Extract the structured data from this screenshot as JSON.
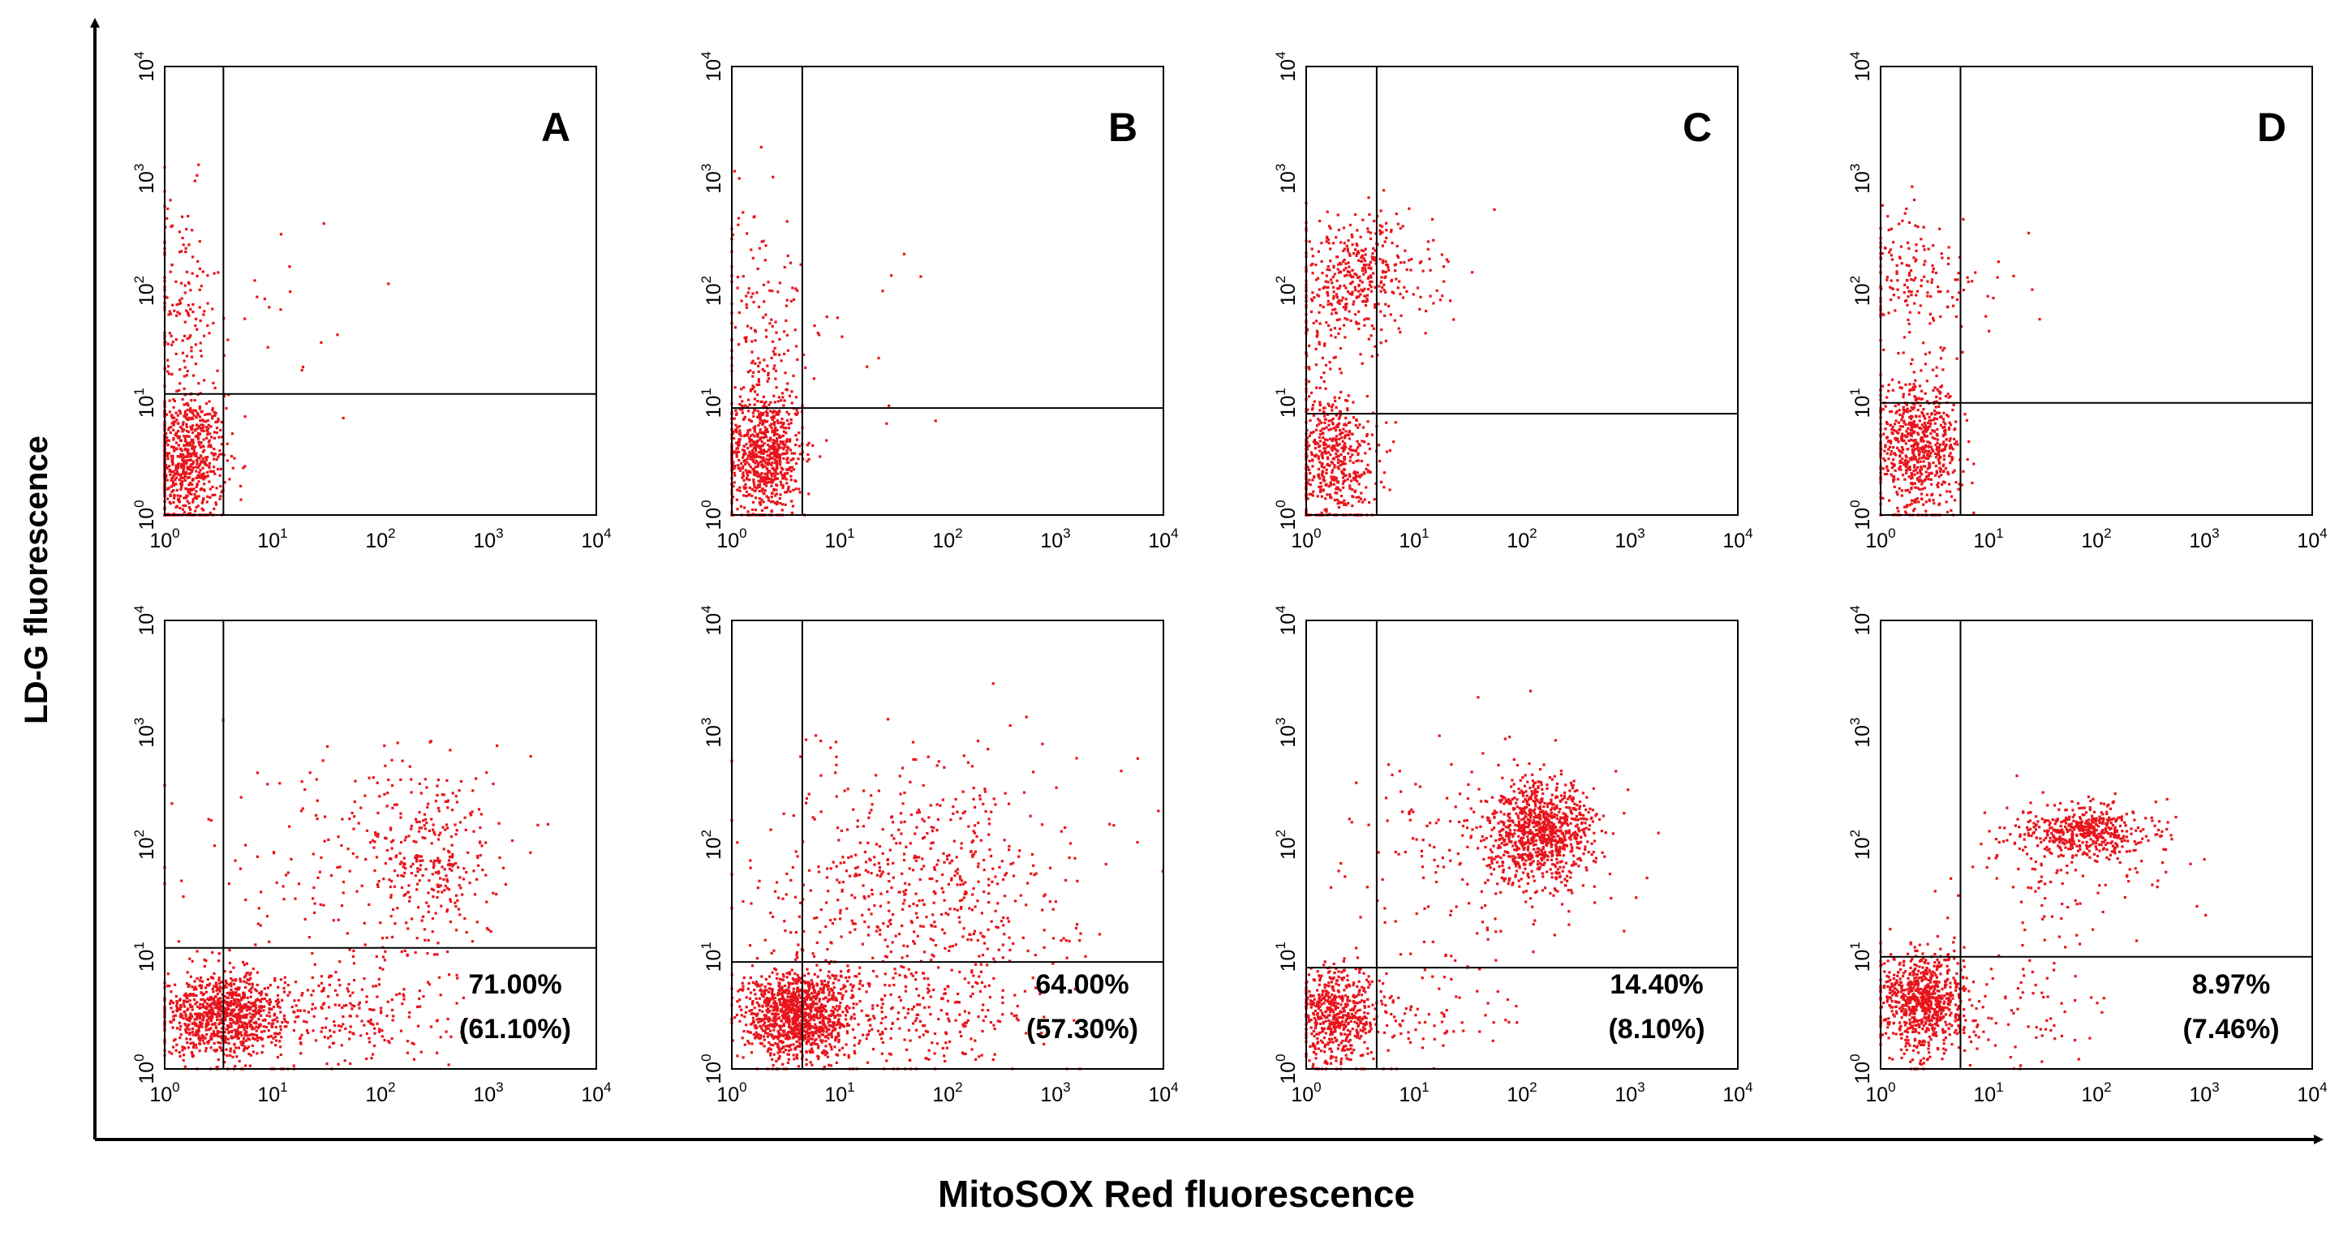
{
  "figure": {
    "xlabel": "MitoSOX Red fluorescence",
    "ylabel": "LD-G fluorescence",
    "colors": {
      "dots": "#e8141c",
      "lines": "#000000",
      "text": "#000000"
    }
  },
  "chart_data": {
    "type": "scatter",
    "description": "Flow cytometry dot plots, 2 rows x 4 columns, log-log axes",
    "x_scale": "log",
    "y_scale": "log",
    "xlim": [
      1,
      10000
    ],
    "ylim": [
      1,
      10000
    ],
    "tick_labels": {
      "x": [
        {
          "base": "10",
          "exp": "0"
        },
        {
          "base": "10",
          "exp": "1"
        },
        {
          "base": "10",
          "exp": "2"
        },
        {
          "base": "10",
          "exp": "3"
        },
        {
          "base": "10",
          "exp": "4"
        }
      ],
      "y": [
        {
          "base": "10",
          "exp": "0"
        },
        {
          "base": "10",
          "exp": "1"
        },
        {
          "base": "10",
          "exp": "2"
        },
        {
          "base": "10",
          "exp": "3"
        },
        {
          "base": "10",
          "exp": "4"
        }
      ]
    },
    "panels": [
      {
        "id": "A-top",
        "column_label": "A",
        "row": 0,
        "col": 0,
        "gate_x": 3.5,
        "gate_y": 12,
        "clusters": [
          {
            "cx": 1.6,
            "cy": 3.0,
            "sx": 0.18,
            "sy": 0.3,
            "n": 700
          },
          {
            "cx": 1.4,
            "cy": 60,
            "sx": 0.18,
            "sy": 0.55,
            "n": 160
          },
          {
            "cx": 12,
            "cy": 60,
            "sx": 0.45,
            "sy": 0.45,
            "n": 20
          }
        ]
      },
      {
        "id": "B-top",
        "column_label": "B",
        "row": 0,
        "col": 1,
        "gate_x": 4.5,
        "gate_y": 9,
        "clusters": [
          {
            "cx": 2.0,
            "cy": 3.5,
            "sx": 0.18,
            "sy": 0.28,
            "n": 750
          },
          {
            "cx": 1.8,
            "cy": 50,
            "sx": 0.2,
            "sy": 0.55,
            "n": 160
          },
          {
            "cx": 15,
            "cy": 40,
            "sx": 0.5,
            "sy": 0.45,
            "n": 18
          }
        ]
      },
      {
        "id": "C-top",
        "column_label": "C",
        "row": 0,
        "col": 2,
        "gate_x": 4.5,
        "gate_y": 8,
        "clusters": [
          {
            "cx": 1.8,
            "cy": 3.0,
            "sx": 0.2,
            "sy": 0.3,
            "n": 500
          },
          {
            "cx": 3.0,
            "cy": 130,
            "sx": 0.35,
            "sy": 0.28,
            "n": 400
          },
          {
            "cx": 1.5,
            "cy": 20,
            "sx": 0.18,
            "sy": 0.45,
            "n": 80
          }
        ]
      },
      {
        "id": "D-top",
        "column_label": "D",
        "row": 0,
        "col": 3,
        "gate_x": 5.5,
        "gate_y": 10,
        "clusters": [
          {
            "cx": 2.2,
            "cy": 4.0,
            "sx": 0.2,
            "sy": 0.28,
            "n": 700
          },
          {
            "cx": 2.0,
            "cy": 120,
            "sx": 0.22,
            "sy": 0.35,
            "n": 160
          },
          {
            "cx": 8,
            "cy": 100,
            "sx": 0.3,
            "sy": 0.3,
            "n": 20
          }
        ]
      },
      {
        "id": "A-bottom",
        "row": 1,
        "col": 0,
        "gate_x": 3.5,
        "gate_y": 12,
        "pct": "71.00%",
        "pct_paren": "(61.10%)",
        "clusters": [
          {
            "cx": 3.5,
            "cy": 3.0,
            "sx": 0.28,
            "sy": 0.18,
            "n": 900
          },
          {
            "cx": 40,
            "cy": 3.0,
            "sx": 0.55,
            "sy": 0.25,
            "n": 250
          },
          {
            "cx": 300,
            "cy": 80,
            "sx": 0.3,
            "sy": 0.45,
            "n": 300
          },
          {
            "cx": 30,
            "cy": 60,
            "sx": 0.7,
            "sy": 0.55,
            "n": 150
          }
        ]
      },
      {
        "id": "B-bottom",
        "row": 1,
        "col": 1,
        "gate_x": 4.5,
        "gate_y": 9,
        "pct": "64.00%",
        "pct_paren": "(57.30%)",
        "clusters": [
          {
            "cx": 4.0,
            "cy": 3.0,
            "sx": 0.25,
            "sy": 0.2,
            "n": 1100
          },
          {
            "cx": 40,
            "cy": 3.0,
            "sx": 0.6,
            "sy": 0.25,
            "n": 300
          },
          {
            "cx": 60,
            "cy": 50,
            "sx": 0.7,
            "sy": 0.55,
            "n": 600
          }
        ]
      },
      {
        "id": "C-bottom",
        "row": 1,
        "col": 2,
        "gate_x": 4.5,
        "gate_y": 8,
        "pct": "14.40%",
        "pct_paren": "(8.10%)",
        "clusters": [
          {
            "cx": 2.0,
            "cy": 3.0,
            "sx": 0.2,
            "sy": 0.22,
            "n": 550
          },
          {
            "cx": 150,
            "cy": 130,
            "sx": 0.25,
            "sy": 0.22,
            "n": 900
          },
          {
            "cx": 40,
            "cy": 80,
            "sx": 0.6,
            "sy": 0.45,
            "n": 180
          },
          {
            "cx": 15,
            "cy": 3.0,
            "sx": 0.4,
            "sy": 0.25,
            "n": 80
          }
        ]
      },
      {
        "id": "D-bottom",
        "row": 1,
        "col": 3,
        "gate_x": 5.5,
        "gate_y": 10,
        "pct": "8.97%",
        "pct_paren": "(7.46%)",
        "clusters": [
          {
            "cx": 2.5,
            "cy": 4.0,
            "sx": 0.2,
            "sy": 0.22,
            "n": 800
          },
          {
            "cx": 80,
            "cy": 130,
            "sx": 0.3,
            "sy": 0.12,
            "n": 450
          },
          {
            "cx": 60,
            "cy": 60,
            "sx": 0.5,
            "sy": 0.35,
            "n": 120
          },
          {
            "cx": 25,
            "cy": 3.5,
            "sx": 0.4,
            "sy": 0.28,
            "n": 70
          }
        ]
      }
    ]
  }
}
